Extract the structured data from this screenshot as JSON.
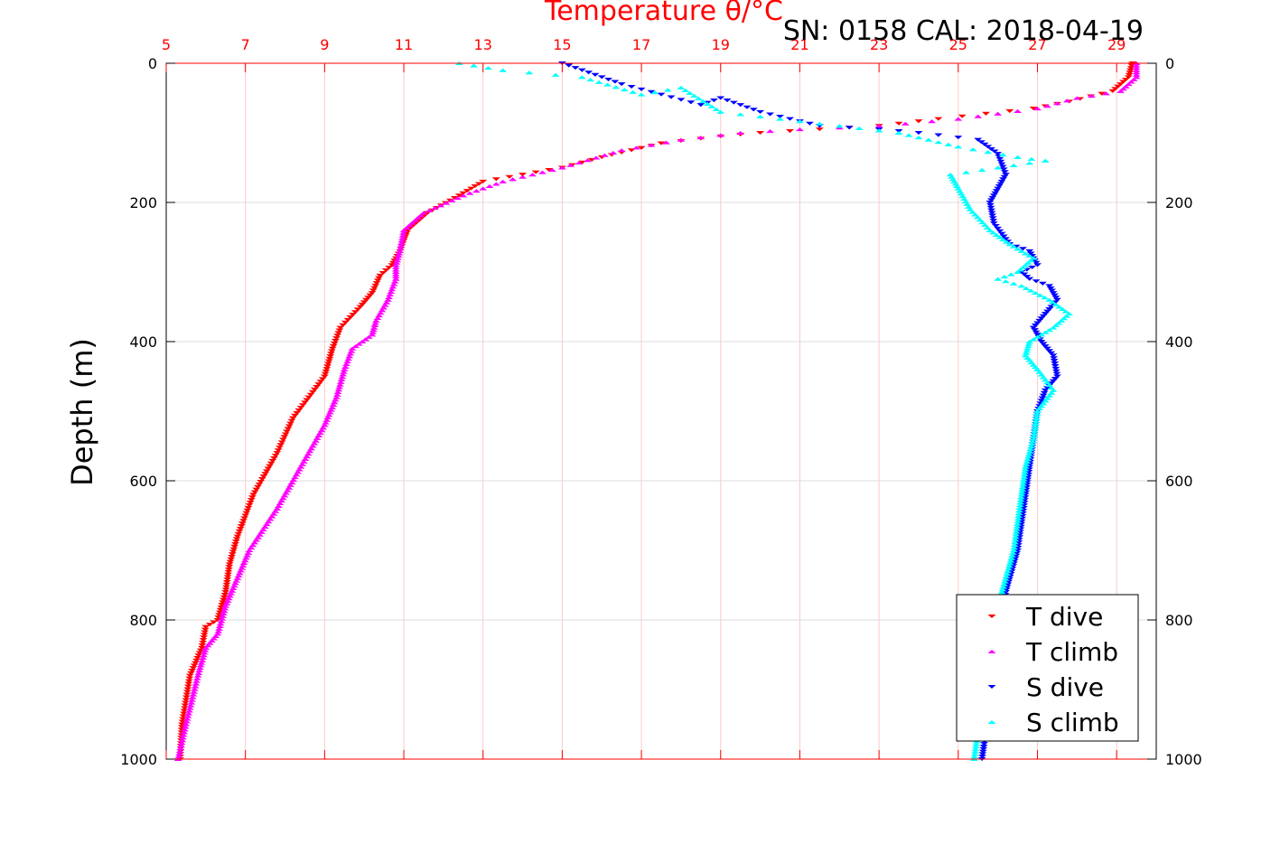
{
  "chart_data": {
    "type": "scatter",
    "title": "Temperature θ/°C",
    "subtitle": "SN: 0158  CAL: 2018-04-19",
    "xlabel": "Temperature θ/°C",
    "ylabel": "Depth (m)",
    "xlim": [
      5,
      30
    ],
    "ylim": [
      1000,
      0
    ],
    "x_ticks": [
      "5",
      "7",
      "9",
      "11",
      "13",
      "15",
      "17",
      "19",
      "21",
      "23",
      "25",
      "27",
      "29"
    ],
    "x_tick_values": [
      5,
      7,
      9,
      11,
      13,
      15,
      17,
      19,
      21,
      23,
      25,
      27,
      29
    ],
    "y_ticks": [
      "0",
      "200",
      "400",
      "600",
      "800",
      "1000"
    ],
    "y_tick_values": [
      0,
      200,
      400,
      600,
      800,
      1000
    ],
    "grid": true,
    "legend_position": "bottom-right",
    "colors": {
      "t_dive": "#ff0000",
      "t_climb": "#ff00ff",
      "s_dive": "#0000ff",
      "s_climb": "#00ffff",
      "axis_top": "#ff0000",
      "grid_vertical": "#ffc8c8",
      "grid_horizontal": "#dcdcdc"
    },
    "series": [
      {
        "name": "T dive",
        "marker": "triangle-down",
        "color": "#ff0000",
        "x": [
          29.4,
          29.3,
          28.9,
          27.8,
          26.9,
          24.5,
          23.0,
          21.5,
          20.0,
          19.0,
          17.5,
          16.0,
          15.0,
          13.0,
          12.4,
          11.6,
          11.1,
          10.9,
          10.7,
          10.4,
          10.2,
          9.9,
          9.4,
          9.2,
          9.0,
          8.6,
          8.2,
          7.8,
          7.2,
          6.8,
          6.6,
          6.5,
          6.3,
          6.0,
          5.9,
          5.6,
          5.4,
          5.35
        ],
        "y": [
          0,
          20,
          40,
          55,
          65,
          80,
          90,
          95,
          100,
          105,
          115,
          135,
          150,
          170,
          190,
          215,
          240,
          270,
          290,
          305,
          330,
          350,
          380,
          410,
          450,
          480,
          510,
          560,
          620,
          680,
          720,
          760,
          800,
          810,
          840,
          880,
          950,
          1000
        ]
      },
      {
        "name": "T climb",
        "marker": "triangle-up",
        "color": "#ff00ff",
        "x": [
          29.5,
          29.5,
          29.1,
          28.0,
          27.0,
          25.0,
          23.0,
          21.0,
          19.5,
          18.0,
          16.5,
          15.0,
          13.5,
          12.5,
          11.5,
          11.0,
          10.9,
          10.8,
          10.8,
          10.6,
          10.3,
          10.2,
          9.7,
          9.5,
          9.3,
          9.0,
          8.4,
          7.8,
          7.1,
          6.8,
          6.5,
          6.3,
          6.0,
          5.8,
          5.5,
          5.3
        ],
        "y": [
          0,
          20,
          40,
          50,
          65,
          80,
          90,
          95,
          100,
          110,
          125,
          150,
          170,
          190,
          215,
          240,
          270,
          290,
          310,
          340,
          370,
          390,
          410,
          440,
          480,
          520,
          580,
          640,
          700,
          740,
          780,
          820,
          840,
          880,
          950,
          1000
        ]
      },
      {
        "name": "S dive",
        "marker": "triangle-down",
        "color": "#0000ff",
        "x": [
          15.0,
          15.5,
          16.5,
          17.5,
          18.5,
          19.0,
          20.0,
          21.5,
          23.0,
          24.0,
          25.5,
          26.0,
          26.2,
          26.0,
          25.8,
          25.9,
          26.3,
          26.8,
          27.0,
          26.6,
          26.8,
          27.3,
          27.5,
          27.2,
          26.9,
          27.1,
          27.4,
          27.5,
          27.2,
          27.0,
          26.9,
          26.8,
          26.7,
          26.5,
          26.2,
          26.0,
          25.8,
          25.7,
          25.6
        ],
        "y": [
          0,
          10,
          30,
          45,
          60,
          50,
          70,
          90,
          95,
          100,
          110,
          130,
          160,
          180,
          200,
          230,
          260,
          270,
          290,
          300,
          310,
          320,
          340,
          360,
          380,
          400,
          420,
          450,
          470,
          500,
          540,
          580,
          620,
          700,
          760,
          820,
          900,
          960,
          1000
        ]
      },
      {
        "name": "S climb",
        "marker": "triangle-up",
        "color": "#00ffff",
        "x": [
          12.4,
          13.5,
          15.5,
          17.0,
          18.0,
          19.0,
          20.5,
          22.0,
          23.5,
          25.0,
          26.5,
          27.2,
          26.0,
          24.8,
          25.0,
          25.3,
          25.8,
          26.3,
          26.9,
          26.5,
          26.0,
          26.6,
          27.3,
          27.8,
          27.4,
          26.8,
          26.7,
          27.0,
          27.4,
          27.0,
          26.9,
          26.7,
          26.6,
          26.4,
          26.1,
          25.9,
          25.7,
          25.5,
          25.4
        ],
        "y": [
          0,
          10,
          20,
          45,
          35,
          70,
          80,
          90,
          100,
          120,
          135,
          140,
          150,
          160,
          180,
          210,
          240,
          260,
          280,
          300,
          310,
          320,
          340,
          360,
          380,
          400,
          420,
          440,
          470,
          500,
          540,
          580,
          620,
          700,
          760,
          820,
          900,
          960,
          1000
        ]
      }
    ]
  }
}
